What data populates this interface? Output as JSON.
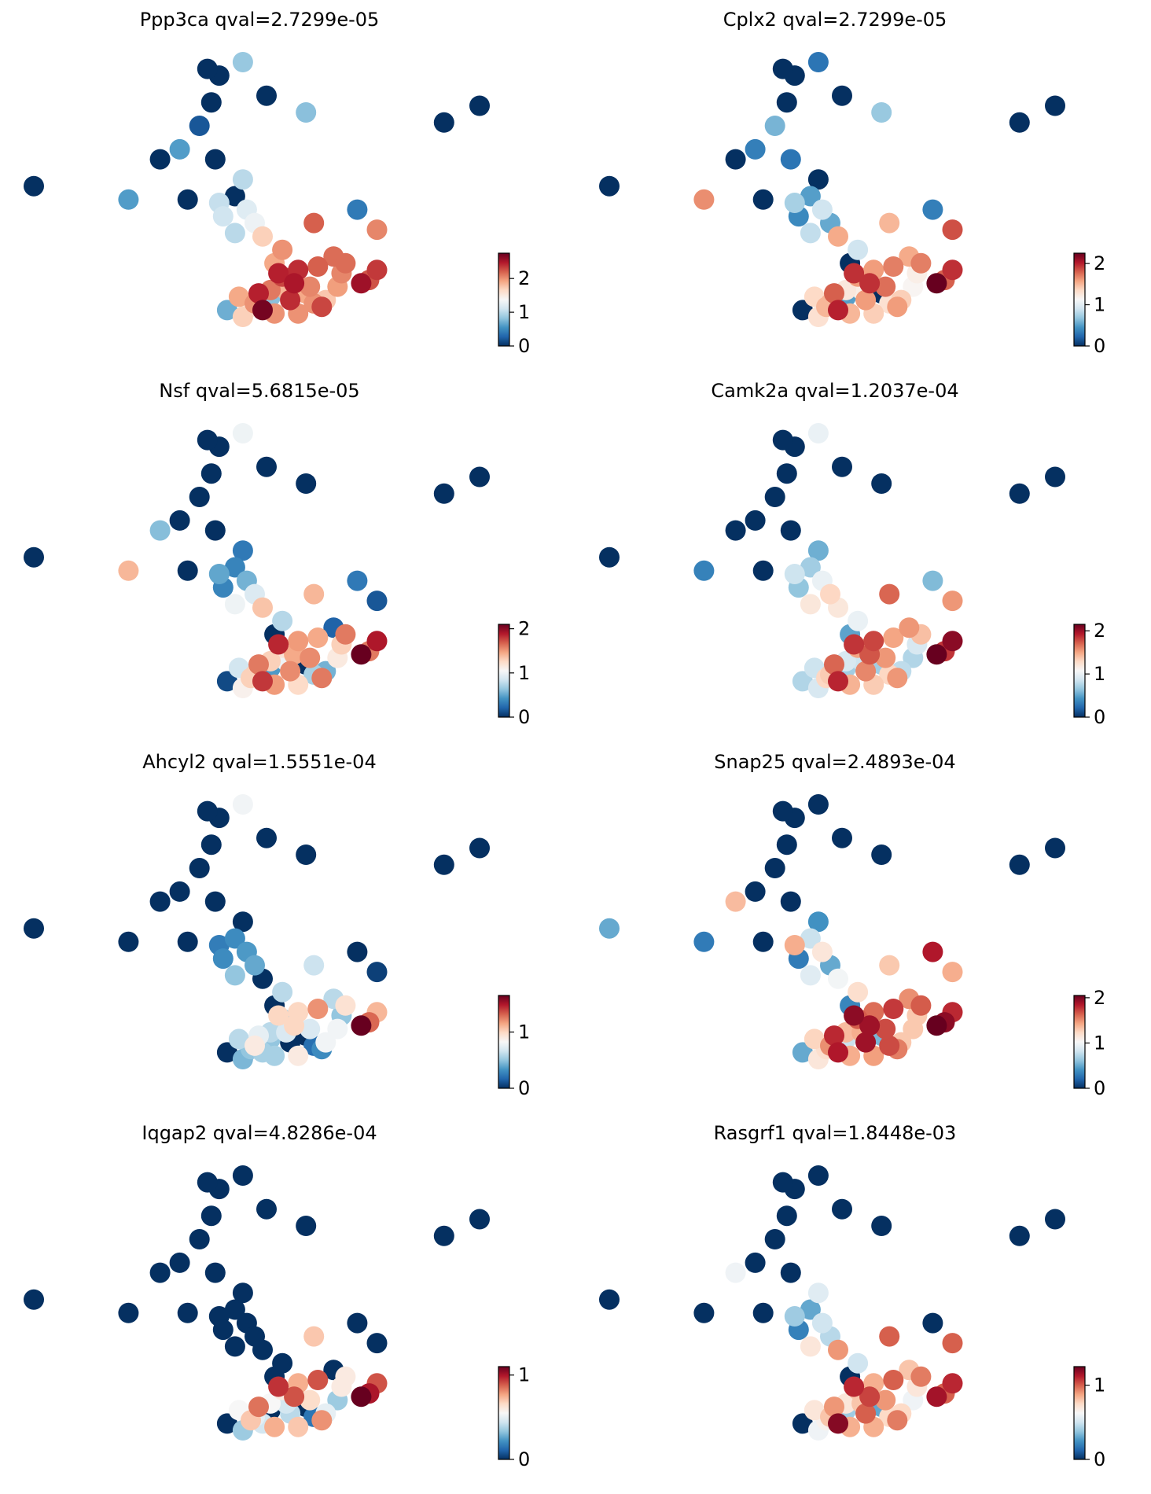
{
  "figure_title": "",
  "colormap": [
    "#053061",
    "#2166ac",
    "#4393c3",
    "#92c5de",
    "#d1e5f0",
    "#f7f7f7",
    "#fddbc7",
    "#f4a582",
    "#d6604d",
    "#b2182b",
    "#67001f"
  ],
  "chart_data": [
    {
      "type": "scatter",
      "title": "Ppp3ca qval=2.7299e-05",
      "gene": "Ppp3ca",
      "qval": "2.7299e-05",
      "xlabel": "",
      "ylabel": "",
      "colorbar": {
        "ticks": [
          0,
          1,
          2
        ],
        "tick_labels": [
          "0",
          "1",
          "2"
        ],
        "vmin": 0,
        "vmax": 2.75
      },
      "values": [
        0,
        0.85,
        0,
        0,
        0.8,
        0,
        0,
        0.2,
        0.6,
        0,
        0,
        0,
        0,
        0,
        0.6,
        1.0,
        0,
        1.05,
        1.2,
        1.1,
        1.3,
        1.0,
        1.7,
        0.4,
        2.05,
        2.2,
        2.15,
        2.4,
        1.9,
        2.0,
        2.15,
        2.35,
        2.25,
        2.55,
        0.8,
        1.9,
        2.0,
        2.4,
        2.7,
        0.7,
        2.0,
        2.3,
        1.95,
        2.1,
        2.45,
        2.5,
        2.3,
        1.7,
        2.0,
        1.75,
        2.05,
        2.0,
        1.9,
        1.6,
        1.85,
        2.45,
        2.2,
        2.05
      ]
    },
    {
      "type": "scatter",
      "title": "Cplx2 qval=2.7299e-05",
      "gene": "Cplx2",
      "qval": "2.7299e-05",
      "xlabel": "",
      "ylabel": "",
      "colorbar": {
        "ticks": [
          0,
          1,
          2
        ],
        "tick_labels": [
          "0",
          "1",
          "2"
        ],
        "vmin": 0,
        "vmax": 2.25
      },
      "values": [
        0,
        0.3,
        0,
        0,
        0.7,
        0,
        0,
        0.6,
        0.35,
        0.3,
        0,
        0,
        0,
        0,
        1.65,
        0,
        0.5,
        0.75,
        0.9,
        0.4,
        0.55,
        0.85,
        1.55,
        0.35,
        1.85,
        1.5,
        1.55,
        1.6,
        0,
        0.9,
        1.7,
        1.95,
        1.8,
        2.25,
        0.5,
        0,
        1.3,
        1.6,
        2.0,
        0,
        1.4,
        1.6,
        1.15,
        1.25,
        1.8,
        1.95,
        1.6,
        1.3,
        1.5,
        1.4,
        1.75,
        1.5,
        1.35,
        1.5,
        1.2,
        1.95,
        1.7,
        1.2
      ]
    },
    {
      "type": "scatter",
      "title": "Nsf qval=5.6815e-05",
      "gene": "Nsf",
      "qval": "5.6815e-05",
      "xlabel": "",
      "ylabel": "",
      "colorbar": {
        "ticks": [
          0,
          1,
          2
        ],
        "tick_labels": [
          "0",
          "1",
          "2"
        ],
        "vmin": 0,
        "vmax": 2.1
      },
      "values": [
        0,
        1.0,
        0,
        0,
        0,
        0,
        0,
        0,
        0,
        0,
        0.6,
        0,
        0,
        0,
        1.4,
        0.3,
        0.35,
        0.5,
        0.55,
        0.35,
        0.9,
        1.0,
        1.35,
        0.3,
        0.15,
        1.4,
        0.2,
        1.5,
        0,
        0.75,
        1.6,
        1.9,
        1.6,
        2.1,
        0.45,
        0,
        0.7,
        1.55,
        1.8,
        0.1,
        1.25,
        1.6,
        1.15,
        1.3,
        1.6,
        1.45,
        1.2,
        1.1,
        1.5,
        0.55,
        1.55,
        1.3,
        0.85,
        1.3,
        1.0,
        1.85,
        1.45,
        1.3
      ]
    },
    {
      "type": "scatter",
      "title": "Camk2a qval=1.2037e-04",
      "gene": "Camk2a",
      "qval": "1.2037e-04",
      "xlabel": "",
      "ylabel": "",
      "colorbar": {
        "ticks": [
          0,
          1,
          2
        ],
        "tick_labels": [
          "0",
          "1",
          "2"
        ],
        "vmin": 0,
        "vmax": 2.15
      },
      "values": [
        0,
        1.0,
        0,
        0,
        0,
        0,
        0,
        0,
        0,
        0,
        0,
        0,
        0,
        0,
        0.35,
        0.55,
        0.7,
        0.85,
        1.0,
        0.65,
        1.3,
        1.2,
        1.2,
        0.6,
        1.55,
        1.7,
        1.55,
        1.8,
        0.5,
        1.0,
        1.4,
        2.05,
        1.85,
        2.15,
        0.7,
        0.7,
        1.3,
        1.6,
        1.9,
        0.75,
        1.35,
        1.55,
        0.75,
        0.9,
        1.7,
        1.75,
        1.5,
        0.9,
        1.45,
        0.8,
        1.55,
        1.35,
        0.85,
        1.3,
        0.85,
        1.85,
        1.5,
        0.9
      ]
    },
    {
      "type": "scatter",
      "title": "Ahcyl2 qval=1.5551e-04",
      "gene": "Ahcyl2",
      "qval": "1.5551e-04",
      "xlabel": "",
      "ylabel": "",
      "colorbar": {
        "ticks": [
          0,
          1
        ],
        "tick_labels": [
          "0",
          "1"
        ],
        "vmin": 0,
        "vmax": 1.65
      },
      "values": [
        0,
        0.8,
        0,
        0,
        0,
        0,
        0,
        0,
        0,
        0,
        0,
        0,
        0,
        0,
        0,
        0,
        0.3,
        0.25,
        0.35,
        0.3,
        0.4,
        0.5,
        0,
        0,
        0.05,
        0.65,
        0.6,
        1.0,
        0,
        0.6,
        0.95,
        1.1,
        1.3,
        1.65,
        0.5,
        0,
        0.2,
        0,
        0.55,
        0,
        0.9,
        0.3,
        0.8,
        0.6,
        0.75,
        1.0,
        0.5,
        0.45,
        0.55,
        0.8,
        0.7,
        0.9,
        0.6,
        0.5,
        0.7,
        1.0,
        1.2,
        0.5
      ]
    },
    {
      "type": "scatter",
      "title": "Snap25 qval=2.4893e-04",
      "gene": "Snap25",
      "qval": "2.4893e-04",
      "xlabel": "",
      "ylabel": "",
      "colorbar": {
        "ticks": [
          0,
          1,
          2
        ],
        "tick_labels": [
          "0",
          "1",
          "2"
        ],
        "vmin": 0,
        "vmax": 2.05
      },
      "values": [
        0.5,
        0,
        0,
        0,
        0,
        0,
        0,
        0,
        0,
        0,
        1.35,
        0,
        0,
        0,
        0.3,
        0.4,
        0.8,
        1.4,
        1.15,
        0.3,
        0.5,
        0.9,
        1.0,
        1.85,
        1.4,
        1.3,
        1.5,
        1.6,
        0.35,
        1.2,
        1.65,
        1.8,
        1.95,
        2.05,
        0.8,
        0.55,
        1.7,
        1.9,
        1.85,
        0.5,
        1.45,
        1.55,
        1.3,
        1.35,
        1.8,
        1.9,
        1.65,
        1.15,
        1.4,
        1.3,
        1.7,
        1.5,
        1.25,
        1.2,
        1.4,
        1.95,
        1.75,
        1.3
      ]
    },
    {
      "type": "scatter",
      "title": "Iqgap2 qval=4.8286e-04",
      "gene": "Iqgap2",
      "qval": "4.8286e-04",
      "xlabel": "",
      "ylabel": "",
      "colorbar": {
        "ticks": [
          0,
          1
        ],
        "tick_labels": [
          "0",
          "1"
        ],
        "vmin": 0,
        "vmax": 1.1
      },
      "values": [
        0,
        0,
        0,
        0,
        0,
        0,
        0,
        0,
        0,
        0,
        0,
        0,
        0,
        0,
        0,
        0,
        0,
        0,
        0,
        0,
        0,
        0,
        0,
        0,
        0,
        0.7,
        0,
        0.75,
        0,
        0,
        0.6,
        0.9,
        1.0,
        1.1,
        0,
        0,
        0.15,
        0.4,
        0.45,
        0,
        0.7,
        0.8,
        0.35,
        0.55,
        0.85,
        0.9,
        0.6,
        0.35,
        0.75,
        0.5,
        0.65,
        0.5,
        0.55,
        0.7,
        0.45,
        0.95,
        0.9,
        0.6
      ]
    },
    {
      "type": "scatter",
      "title": "Rasgrf1 qval=1.8448e-03",
      "gene": "Rasgrf1",
      "qval": "1.8448e-03",
      "xlabel": "",
      "ylabel": "",
      "colorbar": {
        "ticks": [
          0,
          1
        ],
        "tick_labels": [
          "0",
          "1"
        ],
        "vmin": 0,
        "vmax": 1.25
      },
      "values": [
        0,
        0,
        0,
        0,
        0,
        0,
        0,
        0,
        0,
        0,
        0.6,
        0,
        0,
        0,
        0,
        0.55,
        0.3,
        0.4,
        0.5,
        0.2,
        0.45,
        0.7,
        0.9,
        0,
        1.0,
        1.0,
        0.8,
        0.85,
        0,
        0.5,
        0.95,
        1.1,
        1.0,
        1.15,
        0.4,
        0.3,
        0.75,
        1.0,
        1.2,
        0,
        0.85,
        0.95,
        0.6,
        0.7,
        0.9,
        1.05,
        0.8,
        0.6,
        0.85,
        0.75,
        0.9,
        0.8,
        0.7,
        0.65,
        0.8,
        1.1,
        1.0,
        0.7
      ]
    }
  ],
  "embedding": {
    "x": [
      -6.5,
      -1.2,
      -1.8,
      -2.1,
      0.4,
      -0.6,
      -2.0,
      -2.3,
      -2.8,
      -1.9,
      -3.3,
      -2.6,
      3.9,
      4.8,
      -4.1,
      -1.2,
      -1.4,
      -1.8,
      -1.1,
      -1.7,
      -0.9,
      -1.4,
      -0.7,
      1.7,
      2.2,
      0.6,
      1.1,
      0.2,
      -0.4,
      -0.2,
      1.4,
      2.2,
      2.0,
      1.8,
      -0.5,
      0.4,
      0.6,
      0.0,
      -0.7,
      -1.6,
      0.2,
      0.8,
      1.2,
      -0.5,
      -0.8,
      0.1,
      -0.2,
      -1.2,
      -0.4,
      0.9,
      0.5,
      -0.9,
      -1.3,
      -1.0,
      -0.1,
      -0.3,
      0.7,
      1.3
    ],
    "y": [
      9.5,
      13.2,
      12.8,
      13.0,
      11.7,
      12.2,
      12.0,
      11.3,
      10.6,
      10.3,
      10.3,
      9.1,
      11.4,
      11.9,
      9.1,
      9.7,
      9.2,
      9.0,
      8.8,
      8.6,
      8.4,
      8.1,
      8.0,
      8.8,
      8.2,
      8.4,
      7.4,
      7.0,
      7.2,
      7.6,
      7.2,
      7.0,
      6.7,
      6.6,
      6.2,
      6.3,
      6.0,
      6.1,
      5.8,
      5.8,
      5.7,
      5.9,
      6.5,
      6.4,
      6.3,
      6.6,
      6.8,
      5.6,
      5.7,
      6.1,
      6.5,
      6.0,
      6.2,
      5.9,
      6.4,
      6.9,
      7.1,
      6.9
    ]
  }
}
